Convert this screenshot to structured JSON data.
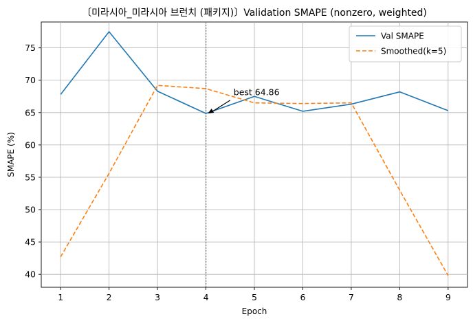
{
  "chart_data": {
    "type": "line",
    "title": "〔미라시아_미라시아 브런치 (패키지)〕Validation SMAPE (nonzero, weighted)",
    "xlabel": "Epoch",
    "ylabel": "SMAPE (%)",
    "x": [
      1,
      2,
      3,
      4,
      5,
      6,
      7,
      8,
      9
    ],
    "xticks": [
      "1",
      "2",
      "3",
      "4",
      "5",
      "6",
      "7",
      "8",
      "9"
    ],
    "yticks": [
      "40",
      "45",
      "50",
      "55",
      "60",
      "65",
      "70",
      "75"
    ],
    "ylim": [
      38.0,
      79.0
    ],
    "xlim": [
      0.6,
      9.4
    ],
    "grid": true,
    "legend_position": "top-right",
    "series": [
      {
        "name": "Val SMAPE",
        "values": [
          67.8,
          77.5,
          68.3,
          64.86,
          67.5,
          65.2,
          66.3,
          68.2,
          65.3
        ],
        "color": "#1f77b4",
        "style": "solid"
      },
      {
        "name": "Smoothed(k=5)",
        "values": [
          42.7,
          55.6,
          69.2,
          68.7,
          66.5,
          66.4,
          66.5,
          53.0,
          39.8
        ],
        "color": "#ff7f0e",
        "style": "dashed"
      }
    ],
    "best_marker": {
      "x": 4,
      "y": 64.86,
      "label": "best 64.86",
      "line_color": "#808080"
    }
  }
}
